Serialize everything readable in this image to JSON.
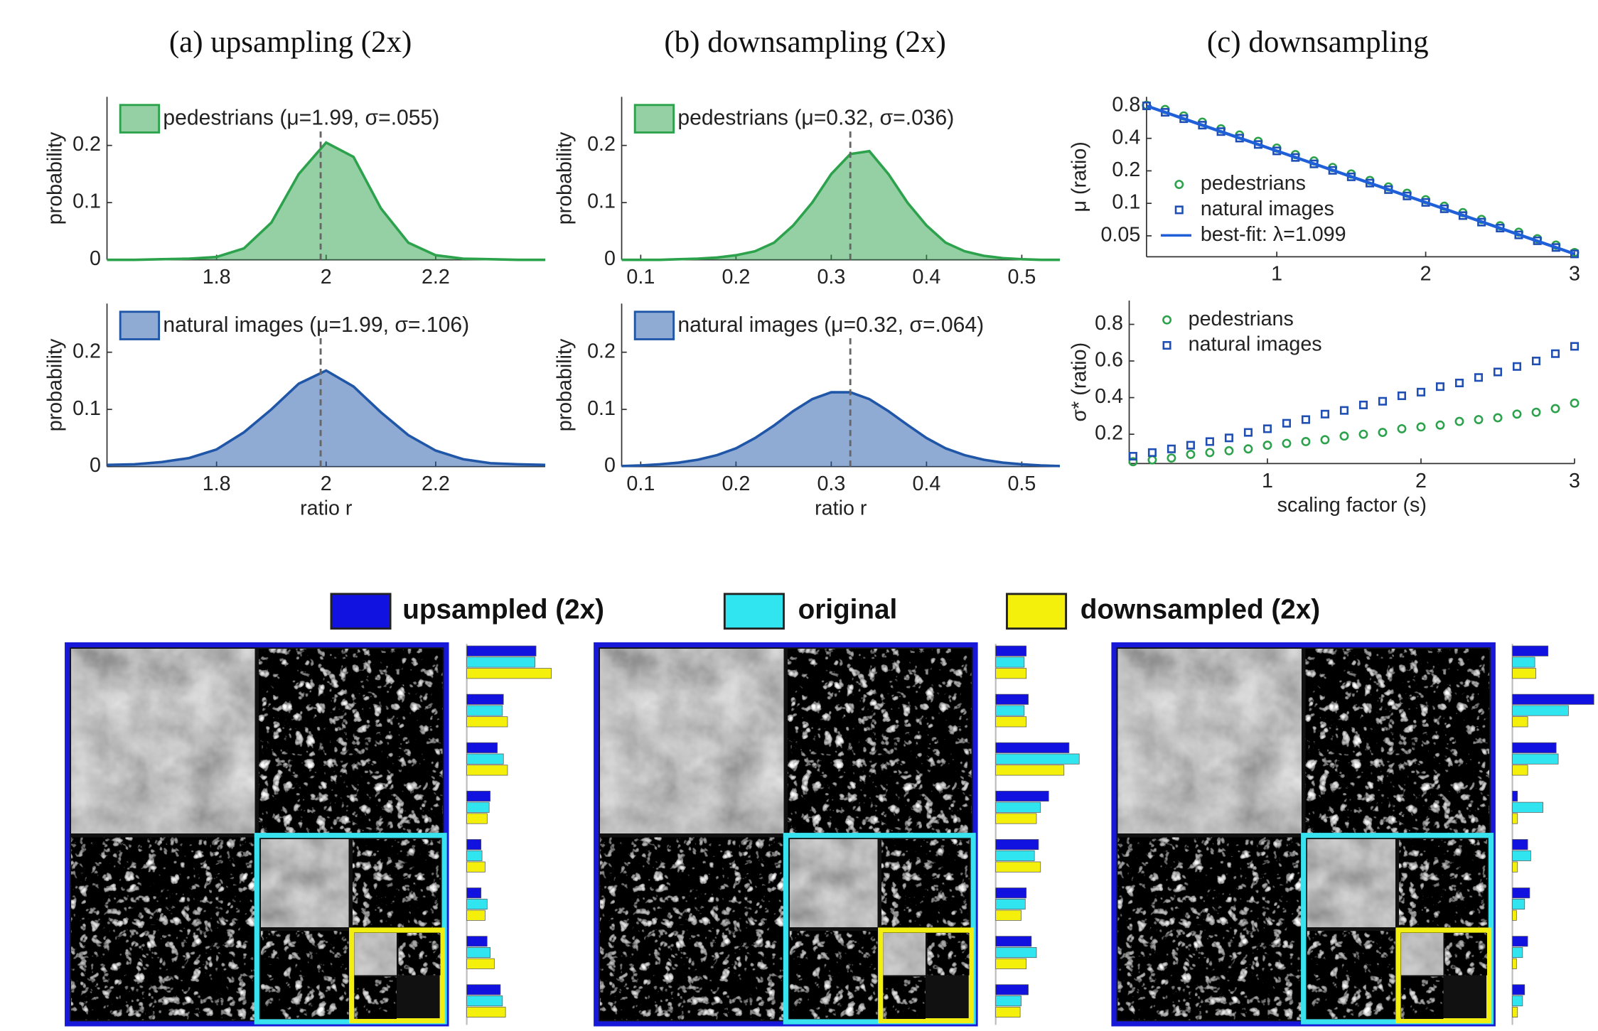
{
  "chart_data": [
    {
      "type": "area",
      "title": "(a) upsampling (2x)",
      "ylabel": "probability",
      "x": [
        1.6,
        1.65,
        1.7,
        1.75,
        1.8,
        1.85,
        1.9,
        1.95,
        2.0,
        2.05,
        2.1,
        2.15,
        2.2,
        2.25,
        2.3,
        2.35,
        2.4
      ],
      "series": [
        {
          "name": "pedestrians (μ=1.99, σ=.055)",
          "color": "#2ca24c",
          "values": [
            0,
            0,
            0.001,
            0.002,
            0.005,
            0.02,
            0.065,
            0.15,
            0.205,
            0.18,
            0.09,
            0.03,
            0.008,
            0.002,
            0.001,
            0,
            0
          ]
        }
      ],
      "mean": 1.99,
      "xlim": [
        1.6,
        2.4
      ],
      "xticks": [
        1.8,
        2,
        2.2
      ],
      "ylim": [
        0,
        0.285
      ],
      "yticks": [
        0,
        0.1,
        0.2
      ]
    },
    {
      "type": "area",
      "ylabel": "probability",
      "xlabel": "ratio r",
      "x": [
        1.6,
        1.65,
        1.7,
        1.75,
        1.8,
        1.85,
        1.9,
        1.95,
        2.0,
        2.05,
        2.1,
        2.15,
        2.2,
        2.25,
        2.3,
        2.35,
        2.4
      ],
      "series": [
        {
          "name": "natural images (μ=1.99, σ=.106)",
          "color": "#1f56a8",
          "values": [
            0.003,
            0.004,
            0.008,
            0.015,
            0.03,
            0.06,
            0.1,
            0.145,
            0.168,
            0.14,
            0.095,
            0.055,
            0.028,
            0.013,
            0.006,
            0.004,
            0.003
          ]
        }
      ],
      "mean": 1.99,
      "xlim": [
        1.6,
        2.4
      ],
      "xticks": [
        1.8,
        2,
        2.2
      ],
      "ylim": [
        0,
        0.285
      ],
      "yticks": [
        0,
        0.1,
        0.2
      ]
    },
    {
      "type": "area",
      "title": "(b) downsampling (2x)",
      "ylabel": "probability",
      "x": [
        0.08,
        0.1,
        0.12,
        0.14,
        0.16,
        0.18,
        0.2,
        0.22,
        0.24,
        0.26,
        0.28,
        0.3,
        0.32,
        0.34,
        0.36,
        0.38,
        0.4,
        0.42,
        0.44,
        0.46,
        0.48,
        0.5,
        0.52,
        0.54
      ],
      "series": [
        {
          "name": "pedestrians (μ=0.32, σ=.036)",
          "color": "#2ca24c",
          "values": [
            0,
            0,
            0,
            0.001,
            0.002,
            0.004,
            0.008,
            0.015,
            0.03,
            0.06,
            0.1,
            0.15,
            0.185,
            0.19,
            0.15,
            0.1,
            0.06,
            0.03,
            0.015,
            0.007,
            0.003,
            0.001,
            0,
            0
          ]
        }
      ],
      "mean": 0.32,
      "xlim": [
        0.08,
        0.54
      ],
      "xticks": [
        0.1,
        0.2,
        0.3,
        0.4,
        0.5
      ],
      "ylim": [
        0,
        0.285
      ],
      "yticks": [
        0,
        0.1,
        0.2
      ]
    },
    {
      "type": "area",
      "ylabel": "probability",
      "xlabel": "ratio r",
      "x": [
        0.08,
        0.1,
        0.12,
        0.14,
        0.16,
        0.18,
        0.2,
        0.22,
        0.24,
        0.26,
        0.28,
        0.3,
        0.32,
        0.34,
        0.36,
        0.38,
        0.4,
        0.42,
        0.44,
        0.46,
        0.48,
        0.5,
        0.52,
        0.54
      ],
      "series": [
        {
          "name": "natural images (μ=0.32, σ=.064)",
          "color": "#1f56a8",
          "values": [
            0.001,
            0.002,
            0.004,
            0.007,
            0.012,
            0.02,
            0.032,
            0.05,
            0.072,
            0.097,
            0.118,
            0.13,
            0.13,
            0.118,
            0.097,
            0.073,
            0.05,
            0.032,
            0.02,
            0.012,
            0.007,
            0.004,
            0.002,
            0.001
          ]
        }
      ],
      "mean": 0.32,
      "xlim": [
        0.08,
        0.54
      ],
      "xticks": [
        0.1,
        0.2,
        0.3,
        0.4,
        0.5
      ],
      "ylim": [
        0,
        0.285
      ],
      "yticks": [
        0,
        0.1,
        0.2
      ]
    },
    {
      "type": "scatter",
      "title": "(c) downsampling",
      "ylabel": "μ (ratio)",
      "log_y": true,
      "x": [
        0.125,
        0.25,
        0.375,
        0.5,
        0.625,
        0.75,
        0.875,
        1,
        1.125,
        1.25,
        1.375,
        1.5,
        1.625,
        1.75,
        1.875,
        2,
        2.125,
        2.25,
        2.375,
        2.5,
        2.625,
        2.75,
        2.875,
        3
      ],
      "series": [
        {
          "name": "pedestrians",
          "marker": "circle",
          "color": "#2ca24c",
          "values": [
            0.81,
            0.74,
            0.645,
            0.565,
            0.49,
            0.43,
            0.375,
            0.325,
            0.283,
            0.247,
            0.215,
            0.187,
            0.163,
            0.142,
            0.124,
            0.108,
            0.094,
            0.082,
            0.071,
            0.062,
            0.054,
            0.047,
            0.041,
            0.035
          ]
        },
        {
          "name": "natural images",
          "marker": "square",
          "color": "#1f4fb5",
          "values": [
            0.8,
            0.697,
            0.608,
            0.53,
            0.462,
            0.402,
            0.351,
            0.306,
            0.266,
            0.232,
            0.202,
            0.176,
            0.154,
            0.134,
            0.117,
            0.102,
            0.089,
            0.077,
            0.067,
            0.059,
            0.051,
            0.045,
            0.039,
            0.034
          ]
        },
        {
          "name": "best-fit: λ=1.099",
          "marker": "line",
          "color": "#1f5fd8",
          "x": [
            0.125,
            3
          ],
          "values": [
            0.8,
            0.034
          ]
        }
      ],
      "xlim": [
        0.125,
        3
      ],
      "xticks": [
        1,
        2,
        3
      ],
      "ylim": [
        0.032,
        0.97
      ],
      "yticks": [
        0.05,
        0.1,
        0.2,
        0.4,
        0.8
      ]
    },
    {
      "type": "scatter",
      "ylabel": "σ* (ratio)",
      "xlabel": "scaling factor (s)",
      "x": [
        0.125,
        0.25,
        0.375,
        0.5,
        0.625,
        0.75,
        0.875,
        1,
        1.125,
        1.25,
        1.375,
        1.5,
        1.625,
        1.75,
        1.875,
        2,
        2.125,
        2.25,
        2.375,
        2.5,
        2.625,
        2.75,
        2.875,
        3
      ],
      "series": [
        {
          "name": "pedestrians",
          "marker": "circle",
          "color": "#2ca24c",
          "values": [
            0.05,
            0.06,
            0.07,
            0.09,
            0.1,
            0.11,
            0.12,
            0.14,
            0.15,
            0.16,
            0.17,
            0.19,
            0.2,
            0.21,
            0.23,
            0.24,
            0.25,
            0.27,
            0.28,
            0.29,
            0.31,
            0.32,
            0.34,
            0.37
          ]
        },
        {
          "name": "natural images",
          "marker": "square",
          "color": "#1f4fb5",
          "values": [
            0.08,
            0.1,
            0.12,
            0.14,
            0.16,
            0.18,
            0.21,
            0.23,
            0.26,
            0.28,
            0.31,
            0.33,
            0.36,
            0.38,
            0.41,
            0.43,
            0.46,
            0.48,
            0.51,
            0.54,
            0.57,
            0.6,
            0.64,
            0.68
          ]
        }
      ],
      "xlim": [
        0.1,
        3
      ],
      "xticks": [
        1,
        2,
        3
      ],
      "ylim": [
        0.04,
        0.93
      ],
      "yticks": [
        0.2,
        0.4,
        0.6,
        0.8
      ]
    },
    {
      "type": "bar",
      "orientation": "horizontal",
      "categories": [
        null,
        null,
        null,
        null,
        null,
        null,
        null,
        null
      ],
      "series": [
        {
          "name": "upsampled (2x)",
          "color": "#1212e0",
          "values": [
            68,
            36,
            30,
            23,
            14,
            14,
            20,
            33
          ]
        },
        {
          "name": "original",
          "color": "#30e4f0",
          "values": [
            67,
            35,
            36,
            22,
            15,
            20,
            23,
            35
          ]
        },
        {
          "name": "downsampled (2x)",
          "color": "#f4f00c",
          "values": [
            83,
            40,
            40,
            20,
            18,
            18,
            27,
            38
          ]
        }
      ]
    },
    {
      "type": "bar",
      "orientation": "horizontal",
      "categories": [
        null,
        null,
        null,
        null,
        null,
        null,
        null,
        null
      ],
      "series": [
        {
          "color": "#1212e0",
          "values": [
            30,
            32,
            72,
            52,
            42,
            30,
            35,
            32
          ]
        },
        {
          "color": "#30e4f0",
          "values": [
            28,
            28,
            82,
            44,
            38,
            29,
            40,
            25
          ]
        },
        {
          "color": "#f4f00c",
          "values": [
            30,
            30,
            67,
            40,
            44,
            25,
            30,
            24
          ]
        }
      ]
    },
    {
      "type": "bar",
      "orientation": "horizontal",
      "categories": [
        null,
        null,
        null,
        null,
        null,
        null,
        null,
        null
      ],
      "series": [
        {
          "color": "#1212e0",
          "values": [
            35,
            80,
            43,
            5,
            15,
            17,
            15,
            12
          ]
        },
        {
          "color": "#30e4f0",
          "values": [
            22,
            55,
            45,
            30,
            18,
            12,
            10,
            10
          ]
        },
        {
          "color": "#f4f00c",
          "values": [
            23,
            15,
            15,
            5,
            5,
            4,
            4,
            5
          ]
        }
      ]
    }
  ]
}
